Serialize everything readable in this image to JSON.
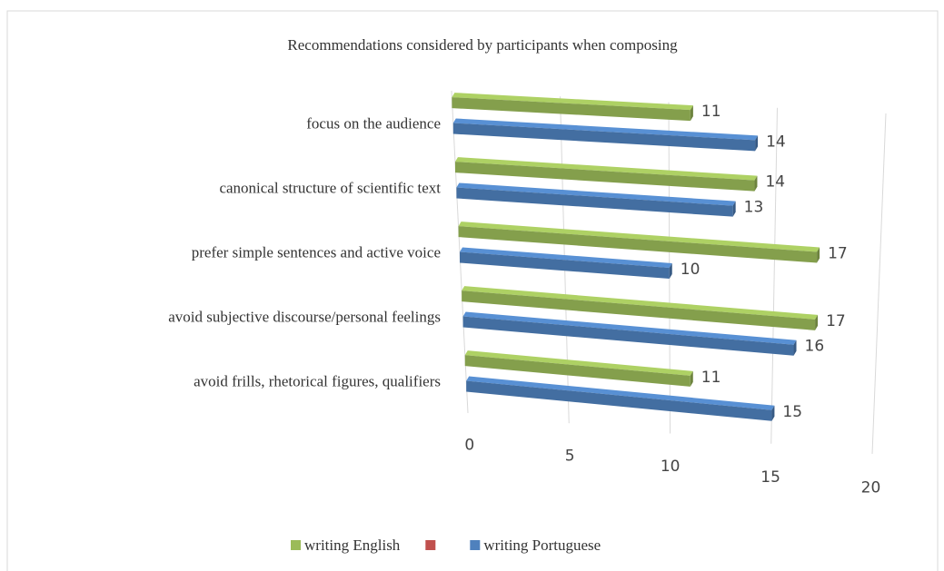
{
  "chart_data": {
    "type": "bar3d",
    "title": "Recommendations considered by participants when composing",
    "categories": [
      "focus on the audience",
      "canonical structure of scientific text",
      "prefer simple sentences and active voice",
      "avoid subjective discourse/personal feelings",
      "avoid frills, rhetorical figures, qualifiers"
    ],
    "series": [
      {
        "name": "writing English",
        "color": "#9bbb59",
        "values": [
          11,
          14,
          17,
          17,
          11
        ]
      },
      {
        "name": null,
        "color": "#c0504d",
        "values": [
          null,
          null,
          null,
          null,
          null
        ]
      },
      {
        "name": "writing Portuguese",
        "color": "#4f81bd",
        "values": [
          14,
          13,
          10,
          16,
          15
        ]
      }
    ],
    "xlim": [
      0,
      20
    ],
    "xticks": [
      0,
      5,
      10,
      15,
      20
    ],
    "grid": true,
    "legend": "bottom"
  }
}
